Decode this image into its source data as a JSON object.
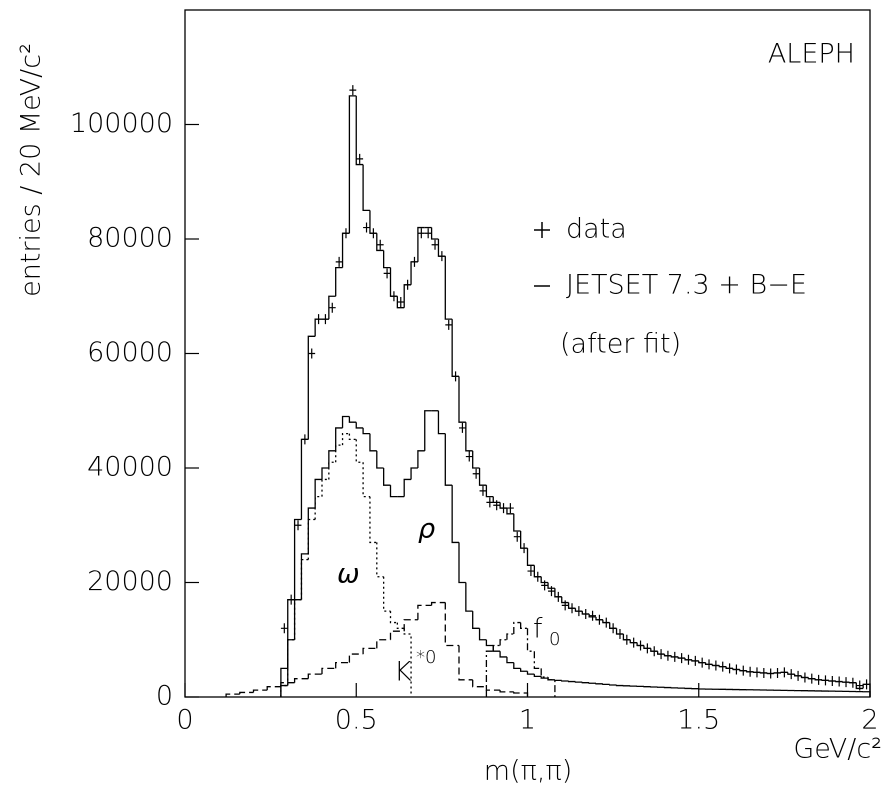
{
  "chart_data": {
    "type": "histogram",
    "title": "ALEPH",
    "x_label": "m(π,π)",
    "x_unit": "GeV/c²",
    "y_label": "entries / 20 MeV/c²",
    "xlim": [
      0,
      2
    ],
    "xticks": [
      0,
      0.5,
      1,
      1.5,
      2
    ],
    "ylim": [
      0,
      120000
    ],
    "yticks": [
      0,
      20000,
      40000,
      60000,
      80000,
      100000
    ],
    "legend": "right",
    "bins": [
      0.28,
      0.3,
      0.32,
      0.34,
      0.36,
      0.38,
      0.4,
      0.42,
      0.44,
      0.46,
      0.48,
      0.5,
      0.52,
      0.54,
      0.56,
      0.58,
      0.6,
      0.62,
      0.64,
      0.66,
      0.68,
      0.7,
      0.72,
      0.74,
      0.76,
      0.78,
      0.8,
      0.82,
      0.84,
      0.86,
      0.88,
      0.9,
      0.92,
      0.94,
      0.96,
      0.98,
      1,
      1.02,
      1.04,
      1.06,
      1.08,
      1.1,
      1.12,
      1.14,
      1.16,
      1.18,
      1.2,
      1.22,
      1.24,
      1.26,
      1.28,
      1.3,
      1.32,
      1.34,
      1.36,
      1.38,
      1.4,
      1.42,
      1.44,
      1.46,
      1.48,
      1.5,
      1.52,
      1.54,
      1.56,
      1.58,
      1.6,
      1.62,
      1.64,
      1.66,
      1.68,
      1.7,
      1.72,
      1.74,
      1.76,
      1.78,
      1.8,
      1.82,
      1.84,
      1.86,
      1.88,
      1.9,
      1.92,
      1.94,
      1.96,
      1.98,
      2
    ],
    "series": [
      {
        "name": "data",
        "style": "points",
        "color": "#000000",
        "values": [
          12000,
          17000,
          30000,
          45000,
          60000,
          66000,
          66000,
          68000,
          76000,
          81000,
          106000,
          94000,
          82000,
          81000,
          79000,
          74000,
          70000,
          69000,
          72000,
          76000,
          81000,
          81000,
          79000,
          77000,
          65000,
          56000,
          47000,
          42000,
          39000,
          36000,
          34000,
          33500,
          33000,
          33000,
          28000,
          26000,
          22000,
          21000,
          19500,
          18500,
          17500,
          16000,
          15500,
          15000,
          14500,
          14200,
          13500,
          13000,
          12000,
          11000,
          10000,
          9500,
          9000,
          8500,
          8000,
          7500,
          7200,
          7000,
          6800,
          6500,
          6300,
          6000,
          5700,
          5500,
          5300,
          5000,
          4800,
          4600,
          4400,
          4300,
          4200,
          4100,
          4200,
          4300,
          4000,
          3700,
          3400,
          3200,
          3000,
          2900,
          2800,
          2700,
          2600,
          2500,
          2000,
          2200
        ]
      },
      {
        "name": "JETSET 7.3 + B−E",
        "style": "solid",
        "color": "#000000",
        "values": [
          5000,
          17000,
          31000,
          45000,
          63000,
          66000,
          66000,
          70000,
          75000,
          81000,
          105000,
          93000,
          85000,
          81000,
          78000,
          75000,
          70000,
          68000,
          72000,
          76000,
          82000,
          82000,
          80000,
          77000,
          66000,
          56000,
          48000,
          43000,
          40000,
          37000,
          35000,
          34000,
          33000,
          32000,
          29000,
          26000,
          23000,
          21000,
          20000,
          19000,
          17500,
          16500,
          15500,
          15000,
          14500,
          14000,
          13500,
          13000,
          12000,
          11000,
          10000,
          9500,
          9000,
          8500,
          8000,
          7500,
          7200,
          7000,
          6800,
          6500,
          6300,
          6000,
          5700,
          5500,
          5300,
          5000,
          4800,
          4600,
          4400,
          4300,
          4200,
          4100,
          4200,
          4300,
          4000,
          3700,
          3400,
          3200,
          3000,
          2900,
          2800,
          2700,
          2600,
          2500,
          1500,
          2200
        ]
      },
      {
        "style": "solid",
        "color": "#000000",
        "values": [
          2000,
          10000,
          17000,
          25000,
          33000,
          38000,
          40000,
          43000,
          47000,
          49000,
          48000,
          47000,
          46000,
          43000,
          40000,
          37000,
          35000,
          35000,
          38000,
          40000,
          43000,
          50000,
          50000,
          46000,
          37000,
          27000,
          20000,
          15000,
          12000,
          10000,
          9000,
          8000,
          7000,
          6000,
          5000,
          4500,
          4000,
          3600,
          3300,
          3000,
          2900,
          2800,
          2700,
          2600,
          2500,
          2400,
          2300,
          2200,
          2100,
          2000,
          1950,
          1900,
          1850,
          1800,
          1750,
          1700,
          1650,
          1600,
          1550,
          1500,
          1450,
          1400,
          1380,
          1360,
          1340,
          1320,
          1300,
          1280,
          1260,
          1240,
          1220,
          1200,
          1180,
          1160,
          1140,
          1120,
          1100,
          1080,
          1060,
          1040,
          1020,
          1000,
          980,
          960,
          940,
          920
        ]
      },
      {
        "style": "dotted",
        "color": "#000000",
        "bins": [
          0.28,
          0.3,
          0.32,
          0.34,
          0.36,
          0.38,
          0.4,
          0.42,
          0.44,
          0.46,
          0.48,
          0.5,
          0.52,
          0.54,
          0.56,
          0.58,
          0.6,
          0.62,
          0.64,
          0.66
        ],
        "values": [
          2000,
          10000,
          17000,
          24000,
          31000,
          35000,
          38000,
          41000,
          44000,
          46000,
          45000,
          41000,
          35000,
          27000,
          21000,
          15000,
          13000,
          12000,
          11000
        ]
      },
      {
        "style": "dashed",
        "color": "#000000",
        "bins": [
          0.12,
          0.16,
          0.2,
          0.24,
          0.28,
          0.32,
          0.36,
          0.4,
          0.44,
          0.48,
          0.52,
          0.56,
          0.6,
          0.64,
          0.68,
          0.72,
          0.76,
          0.8,
          0.84,
          0.88,
          0.92,
          0.96,
          1
        ],
        "values": [
          500,
          800,
          1200,
          1800,
          2500,
          3200,
          4000,
          5000,
          6000,
          7500,
          8500,
          10000,
          11500,
          13500,
          16000,
          16500,
          9000,
          3000,
          1800,
          1200,
          900,
          700
        ]
      },
      {
        "style": "dashdot",
        "color": "#000000",
        "bins": [
          0.88,
          0.9,
          0.92,
          0.94,
          0.96,
          0.98,
          1,
          1.02,
          1.04,
          1.06,
          1.08
        ],
        "values": [
          8000,
          9000,
          10000,
          11000,
          13000,
          12000,
          8000,
          5000,
          3500,
          3000
        ]
      }
    ],
    "annotations": [
      "ω",
      "ρ",
      "K",
      "*0",
      "f",
      "0",
      "(after fit)"
    ]
  }
}
